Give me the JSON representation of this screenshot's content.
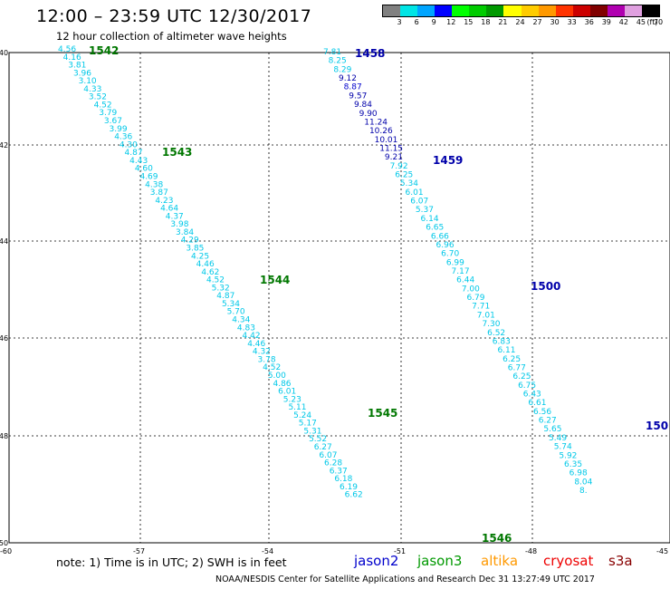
{
  "header": {
    "title": "12:00 – 23:59 UTC 12/30/2017",
    "subtitle": "12 hour collection of altimeter wave heights"
  },
  "legend": {
    "labels": [
      "3",
      "6",
      "9",
      "12",
      "15",
      "18",
      "21",
      "24",
      "27",
      "30",
      "33",
      "36",
      "39",
      "42",
      "45",
      "70",
      "(ft)"
    ],
    "colors": [
      "#808080",
      "#00e5e5",
      "#00a5ff",
      "#0000ff",
      "#00ff00",
      "#00cc00",
      "#009900",
      "#ffff00",
      "#ffcc00",
      "#ff9900",
      "#ff3300",
      "#cc0000",
      "#800000",
      "#b000b0",
      "#e0a0e0",
      "#000000"
    ]
  },
  "axes": {
    "lat_labels": [
      "-40",
      "-42",
      "-44",
      "-46",
      "-48",
      "-50"
    ],
    "lon_labels": [
      "-60",
      "-57",
      "-54",
      "-51",
      "-48",
      "-45"
    ]
  },
  "tracks": [
    {
      "rev_labels": [
        "1542",
        "1543",
        "1544",
        "1545",
        "1546"
      ],
      "rev_color": "#007700",
      "values": [
        "4.56",
        "4.16",
        "3.81",
        "3.96",
        "3.10",
        "4.33",
        "3.52",
        "4.52",
        "3.79",
        "3.67",
        "3.99",
        "4.36",
        "4.30",
        "4.87",
        "4.43",
        "4.60",
        "4.69",
        "4.38",
        "3.87",
        "4.23",
        "4.64",
        "4.37",
        "3.98",
        "3.84",
        "4.29",
        "3.85",
        "4.25",
        "4.46",
        "4.62",
        "4.52",
        "5.32",
        "4.87",
        "5.34",
        "5.70",
        "4.34",
        "4.83",
        "4.42",
        "4.46",
        "4.32",
        "3.78",
        "4.52",
        "5.00",
        "4.86",
        "6.01",
        "5.23",
        "5.11",
        "5.24",
        "5.17",
        "5.31",
        "5.52",
        "6.27",
        "6.07",
        "6.28",
        "6.37",
        "6.18",
        "6.19",
        "6.62"
      ]
    },
    {
      "rev_labels": [
        "1458",
        "1459",
        "1500",
        "150"
      ],
      "rev_color": "#0000aa",
      "values": [
        "7.81",
        "8.25",
        "8.29",
        "9.12",
        "8.87",
        "9.57",
        "9.84",
        "9.90",
        "11.24",
        "10.26",
        "10.01",
        "11.15",
        "9.21",
        "7.92",
        "6.25",
        "5.34",
        "6.01",
        "6.07",
        "5.37",
        "6.14",
        "6.65",
        "6.66",
        "6.96",
        "6.70",
        "6.99",
        "7.17",
        "6.44",
        "7.00",
        "6.79",
        "7.71",
        "7.01",
        "7.30",
        "6.52",
        "6.83",
        "6.11",
        "6.25",
        "6.77",
        "6.25",
        "6.75",
        "6.43",
        "6.61",
        "6.56",
        "6.27",
        "5.65",
        "5.49",
        "5.74",
        "5.92",
        "6.35",
        "6.98",
        "8.04",
        "8."
      ]
    }
  ],
  "note": "note:  1) Time is in UTC;  2) SWH is in feet",
  "satellites": [
    {
      "name": "jason2",
      "color": "#0000cc"
    },
    {
      "name": "jason3",
      "color": "#009900"
    },
    {
      "name": "altika",
      "color": "#ff9900"
    },
    {
      "name": "cryosat",
      "color": "#ee0000"
    },
    {
      "name": "s3a",
      "color": "#880000"
    }
  ],
  "footer": "NOAA/NESDIS Center for Satellite Applications and Research     Dec 31 13:27:49 UTC 2017"
}
